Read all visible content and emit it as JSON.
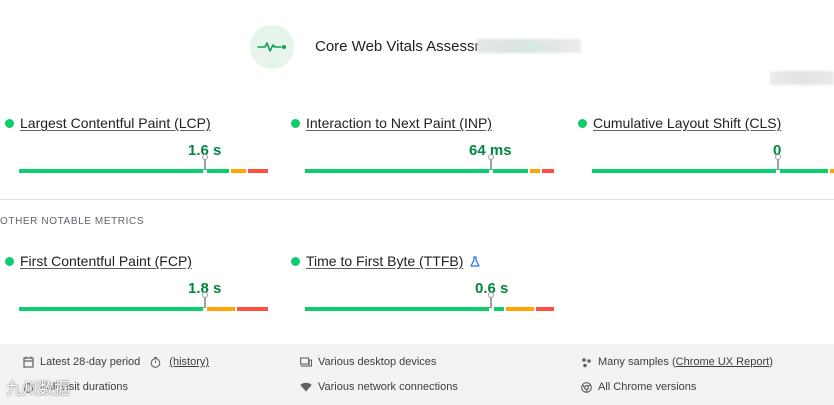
{
  "header": {
    "title": "Core Web Vitals Assessm",
    "icon": "pulse-icon"
  },
  "colors": {
    "good": "#0cce6b",
    "average": "#ffa400",
    "poor": "#ff4e42",
    "value_text": "#018642"
  },
  "core_metrics": [
    {
      "label": "Largest Contentful Paint (LCP)",
      "value": "1.6 s"
    },
    {
      "label": "Interaction to Next Paint (INP)",
      "value": "64 ms"
    },
    {
      "label": "Cumulative Layout Shift (CLS)",
      "value": "0"
    }
  ],
  "section_label": "OTHER NOTABLE METRICS",
  "other_metrics": [
    {
      "label": "First Contentful Paint (FCP)",
      "value": "1.8 s"
    },
    {
      "label": "Time to First Byte (TTFB)",
      "value": "0.6 s",
      "icon": "flask-icon"
    }
  ],
  "footer": {
    "period_text": "Latest 28-day period",
    "period_link": "(history)",
    "durations_text": "Full visit durations",
    "devices_text": "Various desktop devices",
    "network_text": "Various network connections",
    "samples_text": "Many samples (",
    "samples_link": "Chrome UX Report",
    "samples_close": ")",
    "chrome_text": "All Chrome versions"
  },
  "watermark": "九州数据"
}
